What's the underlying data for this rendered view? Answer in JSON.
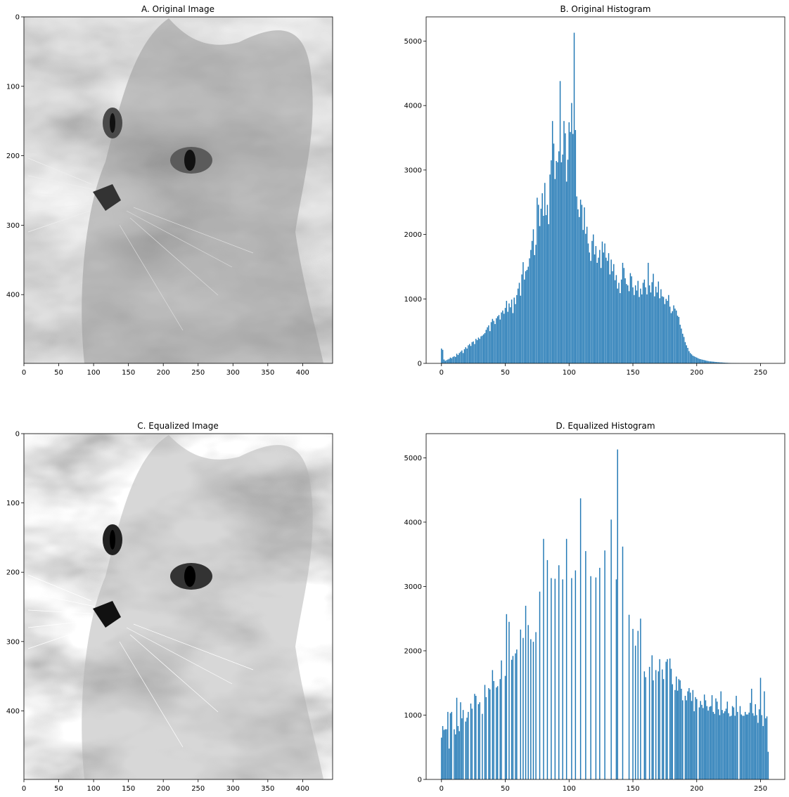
{
  "figure": {
    "panels": [
      {
        "id": "A",
        "kind": "image",
        "title": "A. Original Image",
        "image_description_icon": "grayscale-cat-photo",
        "xticks": [
          "0",
          "50",
          "100",
          "150",
          "200",
          "250",
          "300",
          "350",
          "400"
        ],
        "yticks": [
          "0",
          "100",
          "200",
          "300",
          "400"
        ],
        "xlim": [
          0,
          443
        ],
        "ylim": [
          499,
          0
        ]
      },
      {
        "id": "B",
        "kind": "histogram",
        "title": "B. Original Histogram",
        "xticks": [
          "0",
          "50",
          "100",
          "150",
          "200",
          "250"
        ],
        "yticks": [
          "0",
          "1000",
          "2000",
          "3000",
          "4000",
          "5000"
        ]
      },
      {
        "id": "C",
        "kind": "image",
        "title": "C. Equalized Image",
        "image_description_icon": "grayscale-cat-photo-equalized",
        "xticks": [
          "0",
          "50",
          "100",
          "150",
          "200",
          "250",
          "300",
          "350",
          "400"
        ],
        "yticks": [
          "0",
          "100",
          "200",
          "300",
          "400"
        ],
        "xlim": [
          0,
          443
        ],
        "ylim": [
          499,
          0
        ]
      },
      {
        "id": "D",
        "kind": "histogram",
        "title": "D. Equalized Histogram",
        "xticks": [
          "0",
          "50",
          "100",
          "150",
          "200",
          "250"
        ],
        "yticks": [
          "0",
          "1000",
          "2000",
          "3000",
          "4000",
          "5000"
        ]
      }
    ],
    "colors": {
      "bar": "#1f77b4",
      "axes": "#000000",
      "background": "#ffffff"
    }
  },
  "chart_data": [
    {
      "type": "bar",
      "title": "B. Original Histogram",
      "xlabel": "",
      "ylabel": "",
      "xlim": [
        -12,
        269
      ],
      "ylim": [
        0,
        5376
      ],
      "grid": false,
      "x_start": 0,
      "values": [
        230,
        210,
        60,
        40,
        50,
        60,
        70,
        90,
        80,
        100,
        110,
        100,
        150,
        130,
        160,
        180,
        200,
        160,
        220,
        250,
        230,
        280,
        300,
        270,
        330,
        340,
        300,
        380,
        360,
        400,
        380,
        420,
        430,
        450,
        470,
        520,
        560,
        590,
        500,
        640,
        690,
        660,
        610,
        700,
        730,
        750,
        680,
        790,
        820,
        770,
        860,
        970,
        800,
        930,
        870,
        990,
        780,
        1020,
        920,
        1060,
        1160,
        1250,
        1050,
        1380,
        1570,
        1300,
        1430,
        1450,
        1500,
        1630,
        1760,
        1900,
        2080,
        1680,
        1840,
        2570,
        2460,
        2130,
        2400,
        2640,
        2290,
        2800,
        2300,
        2460,
        2160,
        2930,
        3150,
        3760,
        3410,
        2860,
        3140,
        3120,
        3290,
        4380,
        3120,
        3240,
        3760,
        3570,
        2820,
        3160,
        3740,
        3590,
        4040,
        3560,
        5130,
        3620,
        2590,
        2390,
        2270,
        2540,
        2460,
        2070,
        2420,
        2010,
        2120,
        1860,
        1720,
        1590,
        1900,
        2000,
        1690,
        1820,
        1560,
        1640,
        1760,
        1480,
        1890,
        1720,
        1860,
        1640,
        1590,
        1710,
        1380,
        1610,
        1430,
        1540,
        1290,
        1370,
        1160,
        1250,
        1090,
        1300,
        1560,
        1480,
        1320,
        1230,
        1210,
        1120,
        1400,
        1350,
        1180,
        1060,
        1210,
        1130,
        1280,
        1030,
        1160,
        1070,
        1250,
        1300,
        1180,
        1070,
        1560,
        1210,
        1100,
        1260,
        1390,
        1040,
        1190,
        1100,
        1270,
        1010,
        1150,
        1040,
        1030,
        920,
        1000,
        970,
        1060,
        880,
        780,
        810,
        900,
        850,
        820,
        740,
        720,
        600,
        540,
        460,
        410,
        330,
        280,
        240,
        190,
        160,
        140,
        120,
        110,
        100,
        90,
        80,
        70,
        65,
        60,
        55,
        50,
        45,
        40,
        36,
        32,
        30,
        28,
        26,
        24,
        22,
        20,
        18,
        16,
        15,
        14,
        12,
        10,
        9,
        8,
        7,
        6,
        5,
        4,
        4,
        3,
        3,
        2,
        2,
        1,
        1,
        1,
        1,
        0,
        0,
        0,
        0,
        0,
        0,
        0,
        0,
        0,
        0,
        0,
        0,
        0,
        0,
        0,
        0,
        0,
        0,
        0,
        0,
        0,
        0,
        0,
        0
      ]
    },
    {
      "type": "bar",
      "title": "D. Equalized Histogram",
      "xlabel": "",
      "ylabel": "",
      "xlim": [
        -12,
        269
      ],
      "ylim": [
        0,
        5376
      ],
      "grid": false,
      "bars": [
        [
          0,
          650
        ],
        [
          1,
          830
        ],
        [
          2,
          770
        ],
        [
          3,
          780
        ],
        [
          4,
          780
        ],
        [
          5,
          1050
        ],
        [
          6,
          480
        ],
        [
          7,
          1030
        ],
        [
          8,
          1050
        ],
        [
          10,
          780
        ],
        [
          11,
          700
        ],
        [
          12,
          1270
        ],
        [
          13,
          830
        ],
        [
          14,
          750
        ],
        [
          15,
          1200
        ],
        [
          16,
          950
        ],
        [
          17,
          1080
        ],
        [
          19,
          900
        ],
        [
          20,
          960
        ],
        [
          21,
          1050
        ],
        [
          23,
          1180
        ],
        [
          24,
          1100
        ],
        [
          26,
          1330
        ],
        [
          27,
          1300
        ],
        [
          29,
          1170
        ],
        [
          30,
          1200
        ],
        [
          32,
          1020
        ],
        [
          34,
          1470
        ],
        [
          35,
          1280
        ],
        [
          37,
          1420
        ],
        [
          38,
          1400
        ],
        [
          40,
          1700
        ],
        [
          41,
          1530
        ],
        [
          43,
          1430
        ],
        [
          44,
          1450
        ],
        [
          46,
          1560
        ],
        [
          47,
          1850
        ],
        [
          50,
          1610
        ],
        [
          51,
          2570
        ],
        [
          53,
          2450
        ],
        [
          55,
          1860
        ],
        [
          56,
          1920
        ],
        [
          58,
          1960
        ],
        [
          59,
          2020
        ],
        [
          62,
          2330
        ],
        [
          64,
          2200
        ],
        [
          66,
          2700
        ],
        [
          68,
          2400
        ],
        [
          70,
          2180
        ],
        [
          72,
          2140
        ],
        [
          74,
          2290
        ],
        [
          77,
          2920
        ],
        [
          80,
          3740
        ],
        [
          83,
          3410
        ],
        [
          86,
          3130
        ],
        [
          89,
          3120
        ],
        [
          92,
          3330
        ],
        [
          95,
          3110
        ],
        [
          98,
          3740
        ],
        [
          102,
          3130
        ],
        [
          105,
          3250
        ],
        [
          109,
          4370
        ],
        [
          113,
          3550
        ],
        [
          117,
          3160
        ],
        [
          121,
          3140
        ],
        [
          124,
          3290
        ],
        [
          128,
          3560
        ],
        [
          133,
          4040
        ],
        [
          137,
          3110
        ],
        [
          138,
          5130
        ],
        [
          142,
          3620
        ],
        [
          147,
          2560
        ],
        [
          150,
          2340
        ],
        [
          152,
          2080
        ],
        [
          154,
          2310
        ],
        [
          156,
          2500
        ],
        [
          159,
          1680
        ],
        [
          160,
          1590
        ],
        [
          163,
          1750
        ],
        [
          165,
          1930
        ],
        [
          166,
          1540
        ],
        [
          168,
          1700
        ],
        [
          170,
          1680
        ],
        [
          171,
          1870
        ],
        [
          173,
          1710
        ],
        [
          174,
          1560
        ],
        [
          176,
          1830
        ],
        [
          177,
          1870
        ],
        [
          179,
          1880
        ],
        [
          180,
          1720
        ],
        [
          181,
          1480
        ],
        [
          183,
          1390
        ],
        [
          184,
          1600
        ],
        [
          185,
          1380
        ],
        [
          186,
          1560
        ],
        [
          187,
          1540
        ],
        [
          188,
          1410
        ],
        [
          189,
          1230
        ],
        [
          191,
          1300
        ],
        [
          192,
          1230
        ],
        [
          193,
          1370
        ],
        [
          194,
          1420
        ],
        [
          195,
          1350
        ],
        [
          196,
          1220
        ],
        [
          197,
          1390
        ],
        [
          198,
          1060
        ],
        [
          199,
          1280
        ],
        [
          200,
          1250
        ],
        [
          202,
          1120
        ],
        [
          203,
          1220
        ],
        [
          204,
          1160
        ],
        [
          205,
          1110
        ],
        [
          206,
          1320
        ],
        [
          207,
          1230
        ],
        [
          208,
          1140
        ],
        [
          209,
          1070
        ],
        [
          210,
          1130
        ],
        [
          211,
          1140
        ],
        [
          212,
          1310
        ],
        [
          213,
          1050
        ],
        [
          214,
          1020
        ],
        [
          215,
          1260
        ],
        [
          216,
          1210
        ],
        [
          217,
          1090
        ],
        [
          218,
          1000
        ],
        [
          219,
          1370
        ],
        [
          220,
          1080
        ],
        [
          221,
          1030
        ],
        [
          222,
          1060
        ],
        [
          223,
          1100
        ],
        [
          224,
          1210
        ],
        [
          225,
          1030
        ],
        [
          226,
          980
        ],
        [
          227,
          990
        ],
        [
          228,
          1140
        ],
        [
          229,
          1120
        ],
        [
          230,
          990
        ],
        [
          231,
          1300
        ],
        [
          232,
          1050
        ],
        [
          234,
          1140
        ],
        [
          235,
          1010
        ],
        [
          236,
          990
        ],
        [
          237,
          990
        ],
        [
          238,
          1050
        ],
        [
          239,
          1010
        ],
        [
          240,
          1010
        ],
        [
          241,
          1040
        ],
        [
          242,
          1190
        ],
        [
          243,
          1410
        ],
        [
          244,
          1030
        ],
        [
          245,
          990
        ],
        [
          246,
          1170
        ],
        [
          247,
          1000
        ],
        [
          248,
          880
        ],
        [
          249,
          1090
        ],
        [
          250,
          1580
        ],
        [
          251,
          1000
        ],
        [
          252,
          830
        ],
        [
          253,
          1370
        ],
        [
          254,
          950
        ],
        [
          255,
          980
        ],
        [
          256,
          430
        ]
      ]
    }
  ]
}
